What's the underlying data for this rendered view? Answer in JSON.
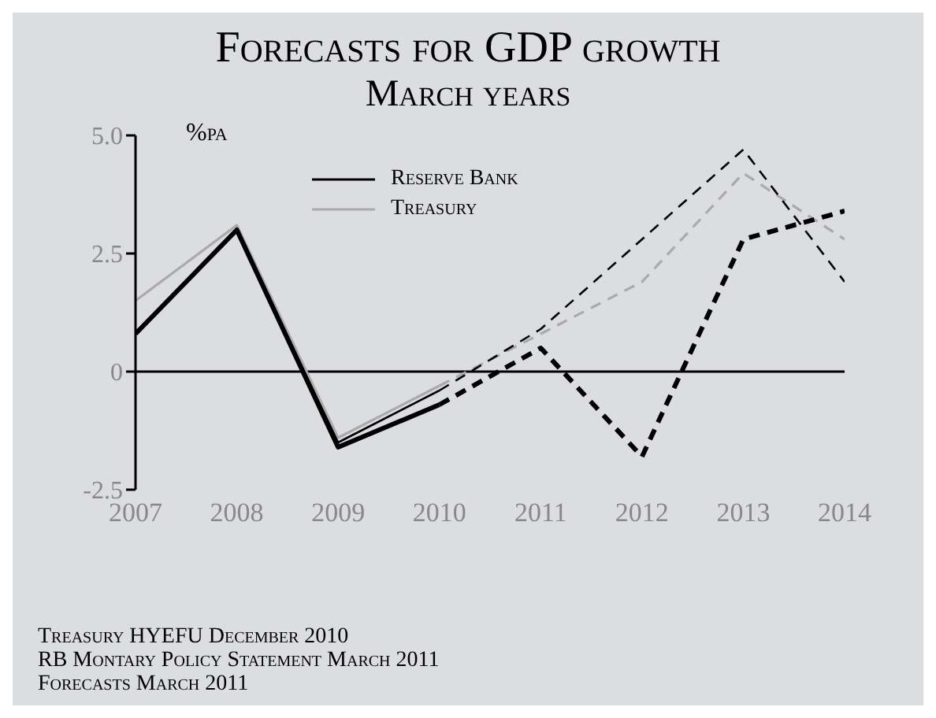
{
  "chart_data": {
    "type": "line",
    "title": "Forecasts for GDP growth",
    "subtitle": "March years",
    "ylabel": "%pa",
    "categories": [
      "2007",
      "2008",
      "2009",
      "2010",
      "2011",
      "2012",
      "2013",
      "2014"
    ],
    "series": [
      {
        "name": "Treasury",
        "color": "#aaaaaa",
        "line_style": "solid",
        "values": [
          1.5,
          3.1,
          -1.4,
          -0.3,
          null,
          null,
          null,
          null
        ]
      },
      {
        "name": "Reserve Bank",
        "color": "#000000",
        "line_style": "solid",
        "values": [
          0.8,
          3.0,
          -1.5,
          -0.4,
          null,
          null,
          null,
          null
        ]
      },
      {
        "color": "#000000",
        "line_style": "solid",
        "values": [
          0.8,
          3.0,
          -1.6,
          -0.7,
          null,
          null,
          null,
          null
        ]
      },
      {
        "color": "#aaaaaa",
        "line_style": "dashed",
        "values": [
          null,
          null,
          null,
          -0.3,
          0.8,
          1.9,
          4.2,
          2.8
        ]
      },
      {
        "color": "#000000",
        "line_style": "dashed",
        "values": [
          null,
          null,
          null,
          -0.4,
          0.9,
          2.8,
          4.7,
          1.9
        ]
      },
      {
        "color": "#000000",
        "line_style": "dashed",
        "values": [
          null,
          null,
          null,
          -0.7,
          0.5,
          -1.8,
          2.8,
          3.4
        ]
      }
    ],
    "ylim": [
      -2.5,
      5
    ],
    "yticks": [
      {
        "value": 5,
        "label": "5.0"
      },
      2.5,
      0,
      -2.5
    ],
    "ref_lines": [
      {
        "axis": "y",
        "value": 0,
        "color": "#000000"
      }
    ],
    "grid": false,
    "legend": "top left",
    "marker": "none",
    "annotations": [
      "Treasury HYEFU December 2010",
      "RB Montary Policy Statement March 2011",
      "Forecasts March 2011"
    ]
  }
}
